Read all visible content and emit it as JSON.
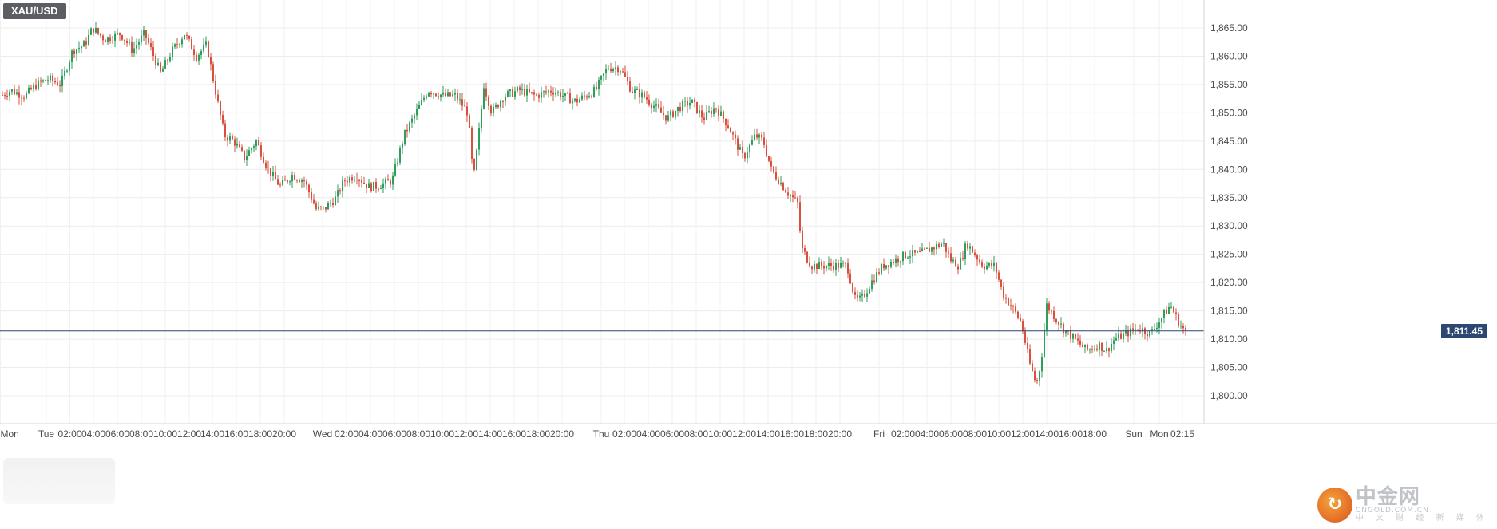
{
  "symbol": "XAU/USD",
  "current_price": "1,811.45",
  "current_price_value": 1811.45,
  "watermark": {
    "cn": "中金网",
    "en": "CNGOLD.COM.CN",
    "sub": "中 文 财 经 新 媒 体",
    "logo_icon": "spiral-logo-icon"
  },
  "colors": {
    "up": "#2e9e5b",
    "down": "#d9503f",
    "grid": "#ececec",
    "price_line": "#2c4771"
  },
  "chart_data": {
    "type": "candlestick",
    "title": "",
    "ylim": [
      1797,
      1869
    ],
    "y_ticks": [
      "1,800.00",
      "1,805.00",
      "1,810.00",
      "1,815.00",
      "1,820.00",
      "1,825.00",
      "1,830.00",
      "1,835.00",
      "1,840.00",
      "1,845.00",
      "1,850.00",
      "1,855.00",
      "1,860.00",
      "1,865.00"
    ],
    "y_tick_values": [
      1800,
      1805,
      1810,
      1815,
      1820,
      1825,
      1830,
      1835,
      1840,
      1845,
      1850,
      1855,
      1860,
      1865
    ],
    "x_labels": [
      "Mon",
      "Tue",
      "02:00",
      "04:00",
      "06:00",
      "08:00",
      "10:00",
      "12:00",
      "14:00",
      "16:00",
      "18:00",
      "20:00",
      "Wed",
      "02:00",
      "04:00",
      "06:00",
      "08:00",
      "10:00",
      "12:00",
      "14:00",
      "16:00",
      "18:00",
      "20:00",
      "Thu",
      "02:00",
      "04:00",
      "06:00",
      "08:00",
      "10:00",
      "12:00",
      "14:00",
      "16:00",
      "18:00",
      "20:00",
      "Fri",
      "02:00",
      "04:00",
      "06:00",
      "08:00",
      "10:00",
      "12:00",
      "14:00",
      "16:00",
      "18:00",
      "Sun",
      "Mon",
      "02:15"
    ],
    "x_label_values": [
      0.5,
      58,
      87.5,
      117,
      147,
      177,
      207,
      237,
      266,
      296,
      326,
      356,
      404,
      434,
      464,
      494,
      524,
      554,
      584,
      614,
      644,
      674,
      704,
      753,
      782,
      812,
      842,
      872,
      902,
      932,
      962,
      992,
      1022,
      1052,
      1101,
      1131,
      1161,
      1191,
      1221,
      1251,
      1281,
      1311,
      1341,
      1371,
      1420,
      1452,
      1481
    ],
    "price_level": 1811.45,
    "anchors": [
      [
        0,
        1853
      ],
      [
        12,
        1854
      ],
      [
        30,
        1853
      ],
      [
        45,
        1855
      ],
      [
        60,
        1856
      ],
      [
        75,
        1855
      ],
      [
        90,
        1861
      ],
      [
        105,
        1862
      ],
      [
        115,
        1865
      ],
      [
        130,
        1863
      ],
      [
        150,
        1864
      ],
      [
        165,
        1861
      ],
      [
        180,
        1864
      ],
      [
        200,
        1857
      ],
      [
        215,
        1861
      ],
      [
        230,
        1864
      ],
      [
        245,
        1860
      ],
      [
        258,
        1862
      ],
      [
        270,
        1853
      ],
      [
        280,
        1846
      ],
      [
        292,
        1845
      ],
      [
        305,
        1842
      ],
      [
        320,
        1845
      ],
      [
        335,
        1840
      ],
      [
        350,
        1837
      ],
      [
        365,
        1839
      ],
      [
        380,
        1838
      ],
      [
        395,
        1833
      ],
      [
        405,
        1833
      ],
      [
        420,
        1835
      ],
      [
        430,
        1838
      ],
      [
        445,
        1839
      ],
      [
        460,
        1837
      ],
      [
        470,
        1837
      ],
      [
        490,
        1838
      ],
      [
        505,
        1846
      ],
      [
        520,
        1850
      ],
      [
        535,
        1854
      ],
      [
        555,
        1853
      ],
      [
        570,
        1853
      ],
      [
        585,
        1850
      ],
      [
        592,
        1838
      ],
      [
        600,
        1848
      ],
      [
        605,
        1855
      ],
      [
        615,
        1850
      ],
      [
        630,
        1853
      ],
      [
        650,
        1854
      ],
      [
        670,
        1853
      ],
      [
        690,
        1854
      ],
      [
        705,
        1853
      ],
      [
        720,
        1852
      ],
      [
        745,
        1854
      ],
      [
        760,
        1858
      ],
      [
        775,
        1858
      ],
      [
        790,
        1854
      ],
      [
        805,
        1853
      ],
      [
        820,
        1851
      ],
      [
        835,
        1849
      ],
      [
        850,
        1851
      ],
      [
        865,
        1852
      ],
      [
        880,
        1849
      ],
      [
        895,
        1851
      ],
      [
        910,
        1848
      ],
      [
        920,
        1845
      ],
      [
        930,
        1842
      ],
      [
        945,
        1846
      ],
      [
        955,
        1845
      ],
      [
        965,
        1840
      ],
      [
        975,
        1838
      ],
      [
        985,
        1836
      ],
      [
        998,
        1834
      ],
      [
        1003,
        1826
      ],
      [
        1015,
        1823
      ],
      [
        1030,
        1823
      ],
      [
        1045,
        1823
      ],
      [
        1060,
        1823
      ],
      [
        1070,
        1817
      ],
      [
        1078,
        1817
      ],
      [
        1090,
        1820
      ],
      [
        1105,
        1823
      ],
      [
        1120,
        1824
      ],
      [
        1135,
        1825
      ],
      [
        1150,
        1825
      ],
      [
        1165,
        1826
      ],
      [
        1180,
        1827
      ],
      [
        1190,
        1824
      ],
      [
        1200,
        1823
      ],
      [
        1210,
        1827
      ],
      [
        1220,
        1825
      ],
      [
        1230,
        1823
      ],
      [
        1245,
        1823
      ],
      [
        1255,
        1818
      ],
      [
        1265,
        1816
      ],
      [
        1278,
        1813
      ],
      [
        1288,
        1806
      ],
      [
        1297,
        1802
      ],
      [
        1303,
        1806
      ],
      [
        1310,
        1816
      ],
      [
        1320,
        1814
      ],
      [
        1330,
        1812
      ],
      [
        1345,
        1810
      ],
      [
        1360,
        1808
      ],
      [
        1375,
        1809
      ],
      [
        1385,
        1808
      ],
      [
        1395,
        1810
      ],
      [
        1410,
        1811
      ],
      [
        1425,
        1812
      ],
      [
        1440,
        1811
      ],
      [
        1455,
        1814
      ],
      [
        1465,
        1816
      ],
      [
        1475,
        1813
      ],
      [
        1485,
        1811
      ]
    ]
  }
}
